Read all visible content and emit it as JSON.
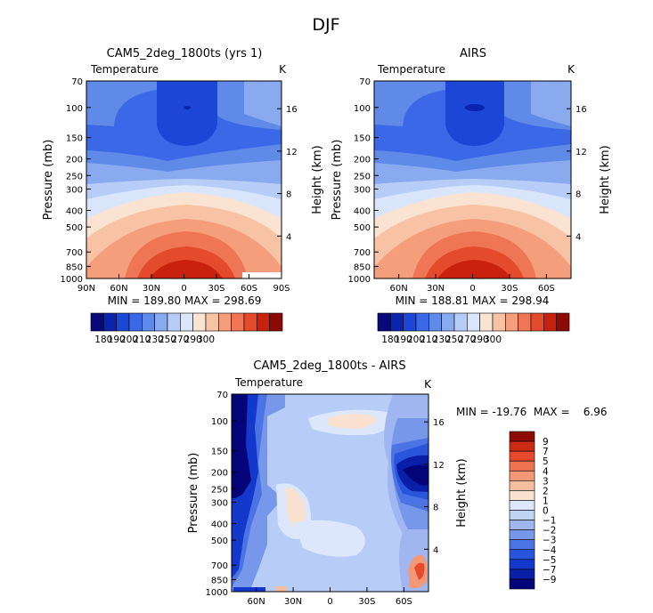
{
  "title": "DJF",
  "colors": {
    "temp_bar": [
      "#08087a",
      "#0a24b0",
      "#1b46d6",
      "#3a68e6",
      "#5f8ae8",
      "#8aaaf0",
      "#b7cdf8",
      "#d9e5fb",
      "#fbe3d2",
      "#f8c2a4",
      "#f49e7c",
      "#ee7654",
      "#e44a2c",
      "#c8220e",
      "#8c0a06"
    ],
    "diff_bar": [
      "#05057a",
      "#0a1fa8",
      "#1538cc",
      "#2855dc",
      "#4b73e3",
      "#7797ea",
      "#9fb6f0",
      "#c2d4f6",
      "#dce7fb",
      "#fbe1d0",
      "#f7bd9f",
      "#f39877",
      "#ee7451",
      "#e6492b",
      "#cc2a12",
      "#8e0b06"
    ]
  },
  "chart_data": [
    {
      "type": "heatmap",
      "title": "CAM5_2deg_1800ts (yrs 1)",
      "left_label": "Temperature",
      "right_label": "K",
      "xlabels": [
        "90N",
        "60N",
        "30N",
        "0",
        "30S",
        "60S",
        "90S"
      ],
      "x_values": [
        90,
        60,
        30,
        0,
        -30,
        -60,
        -90
      ],
      "ylabel": "Pressure (mb)",
      "yticks": [
        70,
        100,
        150,
        200,
        250,
        300,
        400,
        500,
        700,
        850,
        1000
      ],
      "height_label": "Height (km)",
      "height_ticks": [
        4,
        8,
        12,
        16
      ],
      "ylim_mb": [
        1000,
        70
      ],
      "min_max": "MIN = 189.80   MAX = 298.69",
      "colorbar_labels": [
        "180",
        "190",
        "200",
        "210",
        "230",
        "250",
        "270",
        "290",
        "300"
      ]
    },
    {
      "type": "heatmap",
      "title": "AIRS",
      "left_label": "Temperature",
      "right_label": "K",
      "xlabels": [
        "60N",
        "30N",
        "0",
        "30S",
        "60S"
      ],
      "x_values": [
        60,
        30,
        0,
        -30,
        -60
      ],
      "ylabel": "Pressure (mb)",
      "yticks": [
        70,
        100,
        150,
        200,
        250,
        300,
        400,
        500,
        700,
        850,
        1000
      ],
      "height_label": "Height (km)",
      "height_ticks": [
        4,
        8,
        12,
        16
      ],
      "ylim_mb": [
        1000,
        70
      ],
      "min_max": "MIN = 188.81   MAX = 298.94",
      "colorbar_labels": [
        "180",
        "190",
        "200",
        "210",
        "230",
        "250",
        "270",
        "290",
        "300"
      ]
    },
    {
      "type": "heatmap",
      "title": "CAM5_2deg_1800ts - AIRS",
      "left_label": "Temperature",
      "right_label": "K",
      "xlabels": [
        "60N",
        "30N",
        "0",
        "30S",
        "60S"
      ],
      "x_values": [
        60,
        30,
        0,
        -30,
        -60
      ],
      "ylabel": "Pressure (mb)",
      "yticks": [
        70,
        100,
        150,
        200,
        250,
        300,
        400,
        500,
        700,
        850,
        1000
      ],
      "height_label": "Height (km)",
      "height_ticks": [
        4,
        8,
        12,
        16
      ],
      "ylim_mb": [
        1000,
        70
      ],
      "min_max": "MIN = -19.76  MAX =    6.96",
      "colorbar_labels": [
        "9",
        "7",
        "5",
        "4",
        "3",
        "2",
        "1",
        "0",
        "-1",
        "-2",
        "-3",
        "-4",
        "-5",
        "-7",
        "-9"
      ]
    }
  ]
}
